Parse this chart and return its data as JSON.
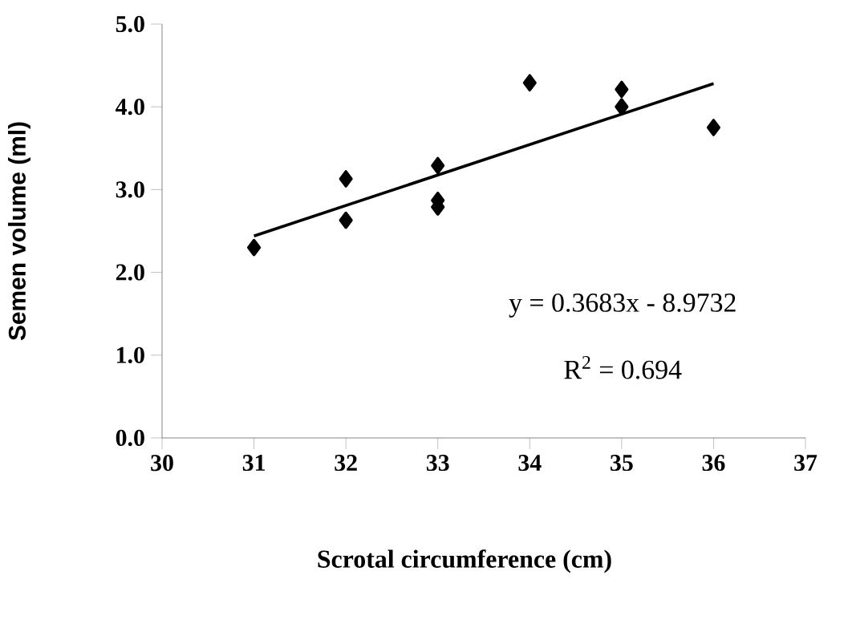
{
  "chart_data": {
    "type": "scatter",
    "xlabel": "Scrotal circumference (cm)",
    "ylabel": "Semen volume (ml)",
    "annotations": [
      "y = 0.3683x - 8.9732",
      "R$^{2}$ = 0.694"
    ],
    "marker": "diamond",
    "xlim": [
      30,
      37
    ],
    "xticks": [
      30,
      31,
      32,
      33,
      34,
      35,
      36,
      37
    ],
    "ylim": [
      0,
      5
    ],
    "yticks": [
      {
        "value": 0,
        "label": "0.0"
      },
      {
        "value": 1,
        "label": "1.0"
      },
      {
        "value": 2,
        "label": "2.0"
      },
      {
        "value": 3,
        "label": "3.0"
      },
      {
        "value": 4,
        "label": "4.0"
      },
      {
        "value": 5,
        "label": "5.0"
      }
    ],
    "series": [
      {
        "color": "#000000",
        "x": [
          31,
          32,
          32,
          33,
          33,
          33,
          34,
          35,
          35,
          36
        ],
        "values": [
          2.3,
          3.13,
          2.63,
          3.29,
          2.87,
          2.79,
          4.29,
          4.21,
          4.0,
          3.75
        ]
      },
      {
        "type": "line",
        "color": "#000000",
        "marker": "none",
        "x": [
          31,
          36
        ],
        "values": [
          2.44,
          4.28
        ]
      }
    ]
  }
}
